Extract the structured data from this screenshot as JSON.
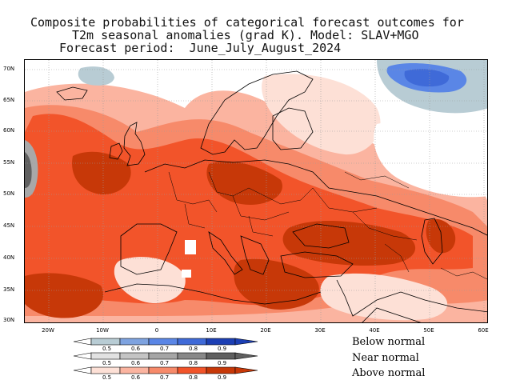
{
  "title": {
    "line1": "Composite probabilities of categorical forecast outcomes for",
    "line2": "T2m seasonal anomalies (grad K). Model: SLAV+MGO",
    "line3": "Forecast period:  June_July_August_2024"
  },
  "axes": {
    "lat_labels": [
      "70N",
      "65N",
      "60N",
      "55N",
      "50N",
      "45N",
      "40N",
      "35N",
      "30N"
    ],
    "lon_labels": [
      "20W",
      "10W",
      "0",
      "10E",
      "20E",
      "30E",
      "40E",
      "50E",
      "60E"
    ]
  },
  "legend": {
    "bars": [
      {
        "name": "Below normal",
        "tick_labels": [
          "0.5",
          "0.6",
          "0.7",
          "0.8",
          "0.9"
        ],
        "colors": [
          "#b8ccd4",
          "#7ea3e0",
          "#5a86e6",
          "#3f6ad8",
          "#1c3fb4"
        ]
      },
      {
        "name": "Near normal",
        "tick_labels": [
          "0.5",
          "0.6",
          "0.7",
          "0.8",
          "0.9"
        ],
        "colors": [
          "#e2e2e2",
          "#c4c4c4",
          "#a6a6a6",
          "#888888",
          "#5f5f5f"
        ]
      },
      {
        "name": "Above normal",
        "tick_labels": [
          "0.5",
          "0.6",
          "0.7",
          "0.8",
          "0.9"
        ],
        "colors": [
          "#fde0d6",
          "#fbb4a0",
          "#f78a6a",
          "#f2542a",
          "#c73808"
        ]
      }
    ]
  },
  "colors": {
    "above_05": "#fde0d6",
    "above_06": "#fbb4a0",
    "above_07": "#f78a6a",
    "above_08": "#f2542a",
    "above_09": "#c73808",
    "below_05": "#b8ccd4",
    "below_06": "#7ea3e0",
    "below_08": "#3f6ad8",
    "near_06": "#a8a8a8",
    "near_09": "#606060"
  }
}
